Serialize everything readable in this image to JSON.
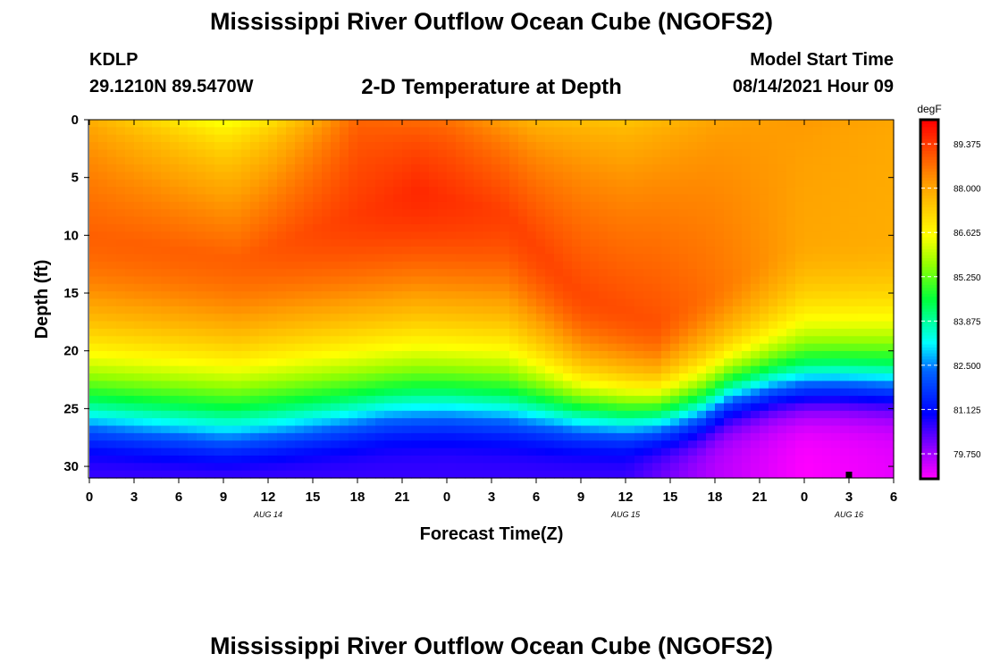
{
  "header": {
    "title": "Mississippi River Outflow Ocean Cube (NGOFS2)",
    "station": "KDLP",
    "coordinates": "29.1210N  89.5470W",
    "subtitle": "2-D Temperature at Depth",
    "model_start_label": "Model Start Time",
    "model_start_value": "08/14/2021 Hour 09"
  },
  "footer": {
    "title": "Mississippi River Outflow Ocean Cube (NGOFS2)"
  },
  "chart_data": {
    "type": "heatmap",
    "title": "2-D Temperature at Depth",
    "xlabel": "Forecast Time(Z)",
    "ylabel": "Depth (ft)",
    "x_range_hours": [
      0,
      54
    ],
    "x_tick_hours": [
      0,
      3,
      6,
      9,
      12,
      15,
      18,
      21,
      24,
      27,
      30,
      33,
      36,
      39,
      42,
      45,
      48,
      51,
      54
    ],
    "x_tick_labels": [
      "0",
      "3",
      "6",
      "9",
      "12",
      "15",
      "18",
      "21",
      "0",
      "3",
      "6",
      "9",
      "12",
      "15",
      "18",
      "21",
      "0",
      "3",
      "6"
    ],
    "date_labels": [
      {
        "hour": 12,
        "label": "AUG 14"
      },
      {
        "hour": 36,
        "label": "AUG 15"
      },
      {
        "hour": 51,
        "label": "AUG 16"
      }
    ],
    "y_range": [
      0,
      31
    ],
    "y_ticks": [
      0,
      5,
      10,
      15,
      20,
      25,
      30
    ],
    "y_tick_labels": [
      "0",
      "5",
      "10",
      "15",
      "20",
      "25",
      "30"
    ],
    "colorbar": {
      "units": "degF",
      "min": 79.0,
      "max": 90.1,
      "ticks": [
        79.75,
        81.125,
        82.5,
        83.875,
        85.25,
        86.625,
        88.0,
        89.375
      ],
      "tick_labels": [
        "79.750",
        "81.125",
        "82.500",
        "83.875",
        "85.250",
        "86.625",
        "88.000",
        "89.375"
      ]
    },
    "surface_temp_degF": [
      [
        0,
        87.8
      ],
      [
        9,
        86.2
      ],
      [
        12,
        86.8
      ],
      [
        18,
        88.8
      ],
      [
        24,
        88.6
      ],
      [
        30,
        87.6
      ],
      [
        36,
        87.4
      ],
      [
        42,
        88.0
      ],
      [
        48,
        88.2
      ],
      [
        54,
        88.0
      ]
    ],
    "mixed_layer_max": [
      {
        "hour": 0,
        "depth": 10,
        "value": 88.9
      },
      {
        "hour": 10,
        "depth": 12,
        "value": 88.9
      },
      {
        "hour": 22,
        "depth": 6,
        "value": 89.6
      },
      {
        "hour": 28,
        "depth": 8,
        "value": 89.3
      },
      {
        "hour": 33,
        "depth": 15,
        "value": 89.2
      },
      {
        "hour": 38,
        "depth": 17.5,
        "value": 89.1
      },
      {
        "hour": 48,
        "depth": 10,
        "value": 88.0
      },
      {
        "hour": 54,
        "depth": 10,
        "value": 87.9
      }
    ],
    "thermocline_depth_ft": [
      [
        0,
        27.5
      ],
      [
        6,
        28.6
      ],
      [
        9,
        29.2
      ],
      [
        12,
        28.6
      ],
      [
        16,
        27.6
      ],
      [
        20,
        26.5
      ],
      [
        24,
        26.2
      ],
      [
        28,
        26.6
      ],
      [
        32,
        27.0
      ],
      [
        36,
        27.2
      ],
      [
        39,
        26.9
      ],
      [
        41,
        26.2
      ],
      [
        43,
        24.6
      ],
      [
        46,
        23.8
      ],
      [
        50,
        23.6
      ],
      [
        54,
        23.8
      ]
    ],
    "bottom_temp_degF": [
      [
        0,
        80.6
      ],
      [
        36,
        80.6
      ],
      [
        42,
        79.6
      ],
      [
        48,
        79.0
      ],
      [
        54,
        79.2
      ]
    ]
  }
}
